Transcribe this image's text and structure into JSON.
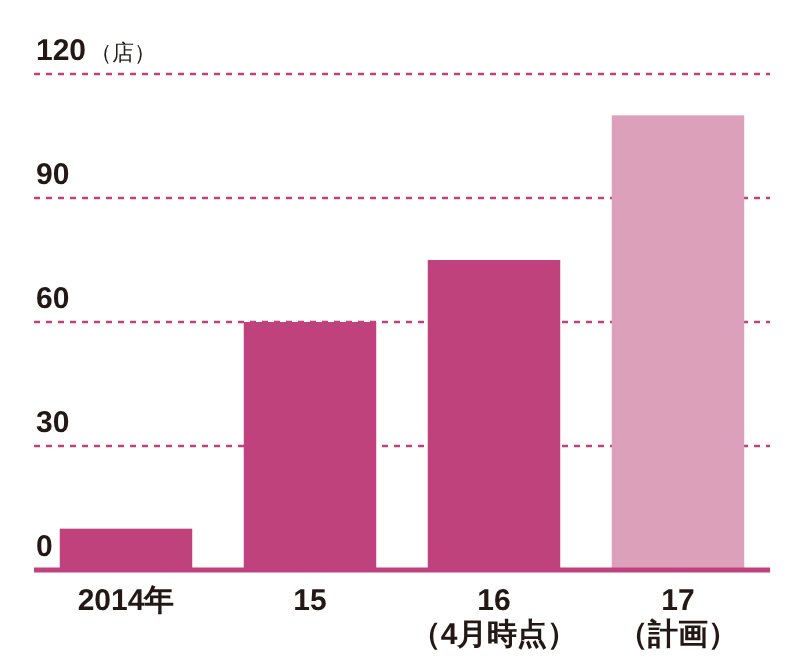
{
  "chart_data": {
    "type": "bar",
    "ylabel": "（店）",
    "categories": [
      "2014年",
      "15",
      "16 （4月時点）",
      "17 （計画）"
    ],
    "values": [
      10,
      60,
      75,
      110
    ],
    "colors": [
      "#c0427c",
      "#c0427c",
      "#c0427c",
      "#dda0bb"
    ],
    "ylim": [
      0,
      120
    ],
    "yticks": [
      0,
      30,
      60,
      90,
      120
    ],
    "grid": "y"
  }
}
